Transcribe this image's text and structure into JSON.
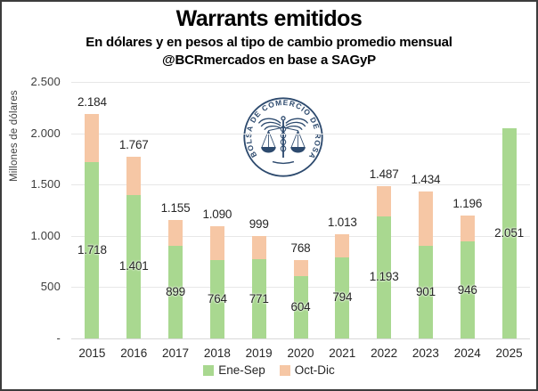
{
  "header": {
    "title": "Warrants emitidos",
    "subtitle_line1": "En dólares y en pesos al tipo de cambio promedio mensual",
    "subtitle_line2": "@BCRmercados en base a SAGyP"
  },
  "y_axis": {
    "title": "Millones de dólares",
    "tick_labels_top_to_bottom": [
      "2.500",
      "2.000",
      "1.500",
      "1.000",
      "500",
      "-"
    ]
  },
  "legend": {
    "items": [
      {
        "label": "Ene-Sep",
        "color": "#a9d890"
      },
      {
        "label": "Oct-Dic",
        "color": "#f6c7a5"
      }
    ]
  },
  "logo": {
    "text": "BOLSA DE COMERCIO DE ROSARIO",
    "color": "#2d4a6e"
  },
  "colors": {
    "ene_sep": "#a9d890",
    "oct_dic": "#f6c7a5",
    "label_text": "#262626",
    "gridline": "#e7e7e7"
  },
  "chart_data": {
    "type": "bar",
    "stacked": true,
    "title": "Warrants emitidos",
    "ylabel": "Millones de dólares",
    "ylim": [
      0,
      2500
    ],
    "y_tick_interval": 500,
    "grid": true,
    "legend_position": "bottom",
    "categories": [
      "2015",
      "2016",
      "2017",
      "2018",
      "2019",
      "2020",
      "2021",
      "2022",
      "2023",
      "2024",
      "2025"
    ],
    "series": [
      {
        "name": "Ene-Sep",
        "color": "#a9d890",
        "values": [
          1718,
          1401,
          899,
          764,
          771,
          604,
          794,
          1193,
          901,
          946,
          2051
        ],
        "labels": [
          "1.718",
          "1.401",
          "899",
          "764",
          "771",
          "604",
          "794",
          "1.193",
          "901",
          "946",
          "2.051"
        ]
      },
      {
        "name": "Oct-Dic",
        "color": "#f6c7a5",
        "values": [
          466,
          366,
          256,
          326,
          228,
          164,
          219,
          294,
          533,
          250,
          0
        ],
        "labels": [
          "",
          "",
          "",
          "",
          "",
          "",
          "",
          "",
          "",
          "",
          ""
        ]
      }
    ],
    "totals": [
      2184,
      1767,
      1155,
      1090,
      999,
      768,
      1013,
      1487,
      1434,
      1196,
      2051
    ],
    "total_labels": [
      "2.184",
      "1.767",
      "1.155",
      "1.090",
      "999",
      "768",
      "1.013",
      "1.487",
      "1.434",
      "1.196",
      ""
    ]
  }
}
